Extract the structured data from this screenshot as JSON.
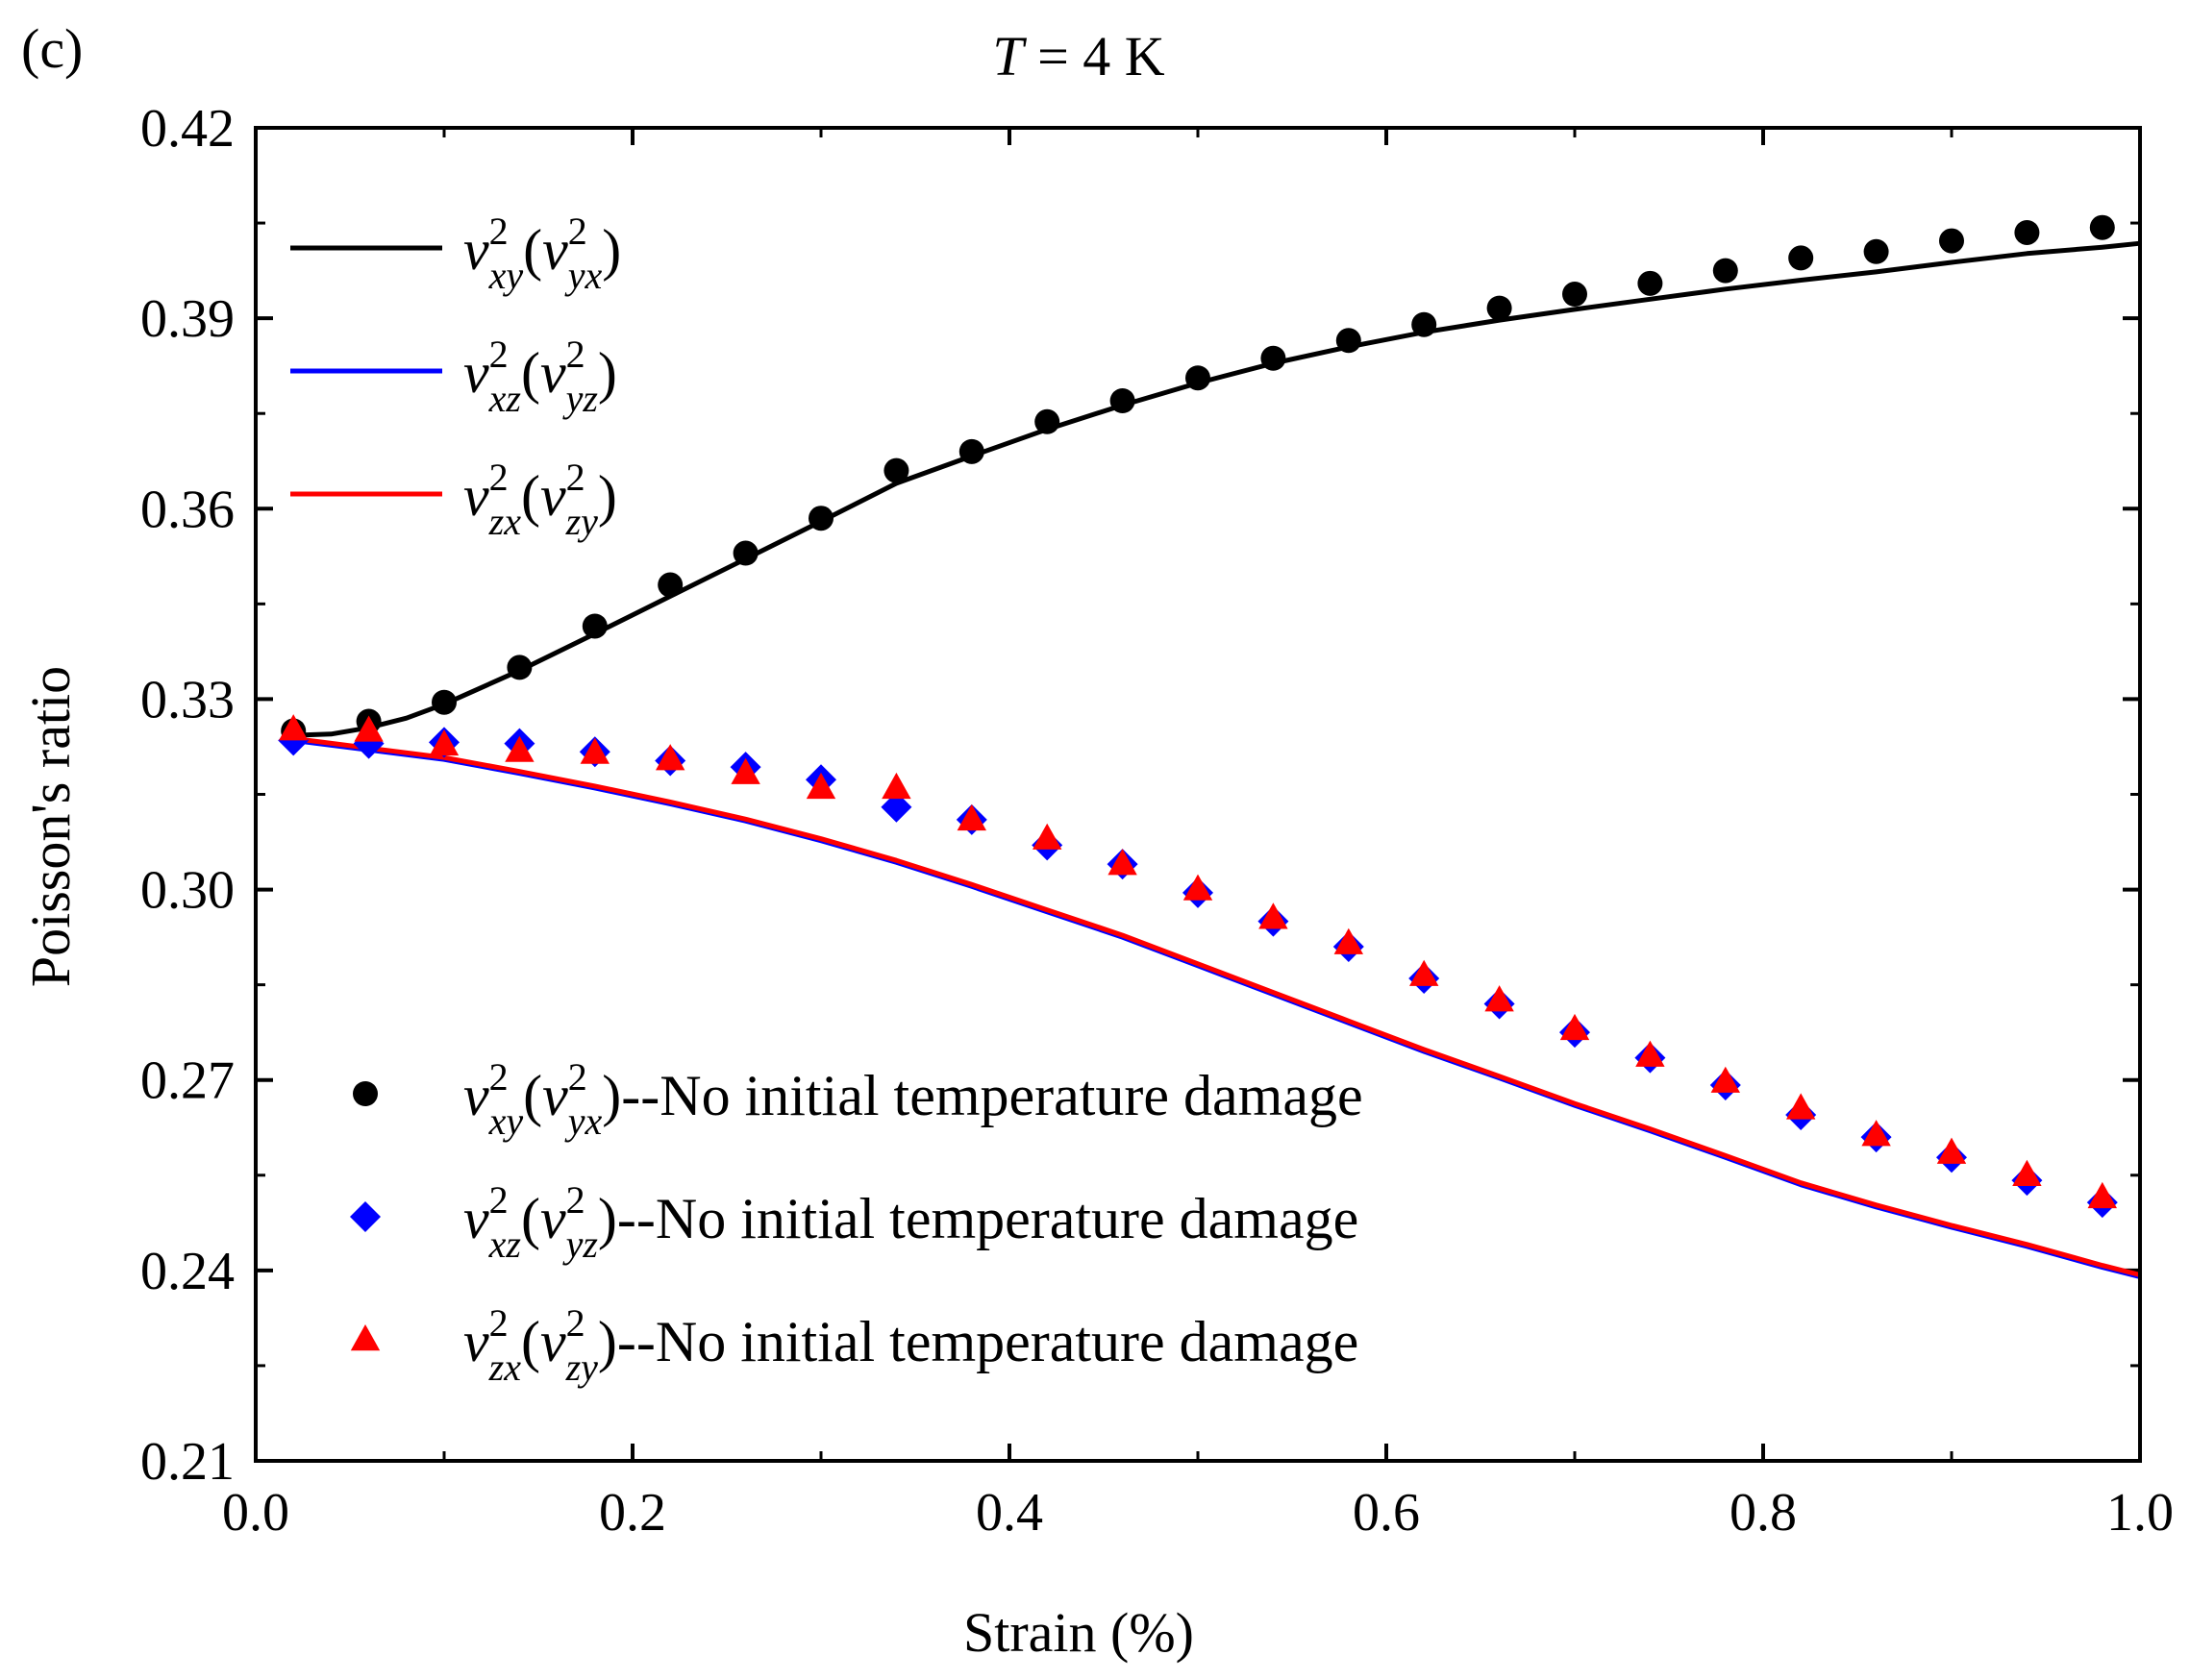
{
  "panel_label": "(c)",
  "colors": {
    "xy": "#000000",
    "xz": "#0000ff",
    "zx": "#ff0000",
    "axis": "#000000",
    "background": "#ffffff"
  },
  "chart_data": {
    "type": "line",
    "title": "T = 4 K",
    "title_parts": {
      "italic": "T",
      "rest": " = 4 K"
    },
    "xlabel": "Strain (%)",
    "ylabel": "Poisson's ratio",
    "xlim": [
      0.0,
      1.0
    ],
    "ylim": [
      0.21,
      0.42
    ],
    "xticks": [
      0.0,
      0.2,
      0.4,
      0.6,
      0.8,
      1.0
    ],
    "xtick_labels": [
      "0.0",
      "0.2",
      "0.4",
      "0.6",
      "0.8",
      "1.0"
    ],
    "yticks": [
      0.21,
      0.24,
      0.27,
      0.3,
      0.33,
      0.36,
      0.39,
      0.42
    ],
    "ytick_labels": [
      "0.21",
      "0.24",
      "0.27",
      "0.30",
      "0.33",
      "0.36",
      "0.39",
      "0.42"
    ],
    "grid": false,
    "legend_top_placement": "top-left",
    "legend_bottom_placement": "bottom-left",
    "lines": [
      {
        "id": "xy",
        "name": "ν_xy^2(ν_yx^2)",
        "color": "#000000",
        "sub1": "xy",
        "sub2": "yx",
        "x": [
          0.02,
          0.04,
          0.06,
          0.08,
          0.1,
          0.14,
          0.18,
          0.22,
          0.26,
          0.3,
          0.34,
          0.38,
          0.42,
          0.46,
          0.5,
          0.54,
          0.58,
          0.62,
          0.66,
          0.7,
          0.74,
          0.78,
          0.82,
          0.86,
          0.9,
          0.94,
          0.98,
          1.0
        ],
        "y": [
          0.3243,
          0.3245,
          0.3255,
          0.327,
          0.3292,
          0.3345,
          0.3403,
          0.3462,
          0.3521,
          0.358,
          0.364,
          0.3683,
          0.3725,
          0.3763,
          0.3798,
          0.3829,
          0.3855,
          0.3878,
          0.3897,
          0.3914,
          0.393,
          0.3946,
          0.396,
          0.3973,
          0.3988,
          0.4002,
          0.4012,
          0.4018
        ]
      },
      {
        "id": "xz",
        "name": "ν_xz^2(ν_yz^2)",
        "color": "#0000ff",
        "sub1": "xz",
        "sub2": "yz",
        "x": [
          0.02,
          0.06,
          0.1,
          0.14,
          0.18,
          0.22,
          0.26,
          0.3,
          0.34,
          0.38,
          0.42,
          0.46,
          0.5,
          0.54,
          0.58,
          0.62,
          0.66,
          0.7,
          0.74,
          0.78,
          0.82,
          0.86,
          0.9,
          0.94,
          0.98,
          1.0
        ],
        "y": [
          0.3235,
          0.322,
          0.3205,
          0.3183,
          0.316,
          0.3135,
          0.3108,
          0.3077,
          0.3043,
          0.3005,
          0.2965,
          0.2925,
          0.288,
          0.2835,
          0.279,
          0.2745,
          0.2703,
          0.266,
          0.262,
          0.2578,
          0.2535,
          0.25,
          0.2468,
          0.2438,
          0.2405,
          0.239
        ]
      },
      {
        "id": "zx",
        "name": "ν_zx^2(ν_zy^2)",
        "color": "#ff0000",
        "sub1": "zx",
        "sub2": "zy",
        "x": [
          0.02,
          0.06,
          0.1,
          0.14,
          0.18,
          0.22,
          0.26,
          0.3,
          0.34,
          0.38,
          0.42,
          0.46,
          0.5,
          0.54,
          0.58,
          0.62,
          0.66,
          0.7,
          0.74,
          0.78,
          0.82,
          0.86,
          0.9,
          0.94,
          0.98,
          1.0
        ],
        "y": [
          0.3238,
          0.3223,
          0.3208,
          0.3186,
          0.3163,
          0.3138,
          0.3111,
          0.308,
          0.3046,
          0.3008,
          0.2968,
          0.2928,
          0.2883,
          0.2838,
          0.2793,
          0.2748,
          0.2706,
          0.2663,
          0.2623,
          0.2581,
          0.2538,
          0.2503,
          0.2471,
          0.2441,
          0.2408,
          0.2393
        ]
      }
    ],
    "markers": [
      {
        "id": "xy",
        "shape": "circle",
        "color": "#000000",
        "sub1": "xy",
        "sub2": "yx",
        "suffix": "--No initial temperature damage",
        "x": [
          0.02,
          0.06,
          0.1,
          0.14,
          0.18,
          0.22,
          0.26,
          0.3,
          0.34,
          0.38,
          0.42,
          0.46,
          0.5,
          0.54,
          0.58,
          0.62,
          0.66,
          0.7,
          0.74,
          0.78,
          0.82,
          0.86,
          0.9,
          0.94,
          0.98
        ],
        "y": [
          0.325,
          0.3265,
          0.3295,
          0.335,
          0.3415,
          0.348,
          0.353,
          0.3585,
          0.366,
          0.369,
          0.3737,
          0.377,
          0.3806,
          0.3837,
          0.3865,
          0.389,
          0.3916,
          0.3938,
          0.3955,
          0.3975,
          0.3995,
          0.4005,
          0.4022,
          0.4035,
          0.4043
        ]
      },
      {
        "id": "xz",
        "shape": "diamond",
        "color": "#0000ff",
        "sub1": "xz",
        "sub2": "yz",
        "suffix": "--No initial temperature damage",
        "x": [
          0.02,
          0.06,
          0.1,
          0.14,
          0.18,
          0.22,
          0.26,
          0.3,
          0.34,
          0.38,
          0.42,
          0.46,
          0.5,
          0.54,
          0.58,
          0.62,
          0.66,
          0.7,
          0.74,
          0.78,
          0.82,
          0.86,
          0.9,
          0.94,
          0.98
        ],
        "y": [
          0.3235,
          0.323,
          0.3232,
          0.323,
          0.3217,
          0.3203,
          0.3193,
          0.3173,
          0.313,
          0.311,
          0.307,
          0.304,
          0.2995,
          0.295,
          0.291,
          0.286,
          0.282,
          0.2775,
          0.2735,
          0.2692,
          0.2645,
          0.261,
          0.2578,
          0.2542,
          0.2507
        ]
      },
      {
        "id": "zx",
        "shape": "triangle",
        "color": "#ff0000",
        "sub1": "zx",
        "sub2": "zy",
        "suffix": "--No initial temperature damage",
        "x": [
          0.02,
          0.06,
          0.1,
          0.14,
          0.18,
          0.22,
          0.26,
          0.3,
          0.34,
          0.38,
          0.42,
          0.46,
          0.5,
          0.54,
          0.58,
          0.62,
          0.66,
          0.7,
          0.74,
          0.78,
          0.82,
          0.86,
          0.9,
          0.94,
          0.98
        ],
        "y": [
          0.3252,
          0.325,
          0.3228,
          0.3218,
          0.3215,
          0.3205,
          0.3183,
          0.316,
          0.316,
          0.311,
          0.308,
          0.304,
          0.3,
          0.2955,
          0.2915,
          0.2865,
          0.2825,
          0.278,
          0.2738,
          0.2697,
          0.2655,
          0.2613,
          0.2585,
          0.255,
          0.2515
        ]
      }
    ]
  }
}
